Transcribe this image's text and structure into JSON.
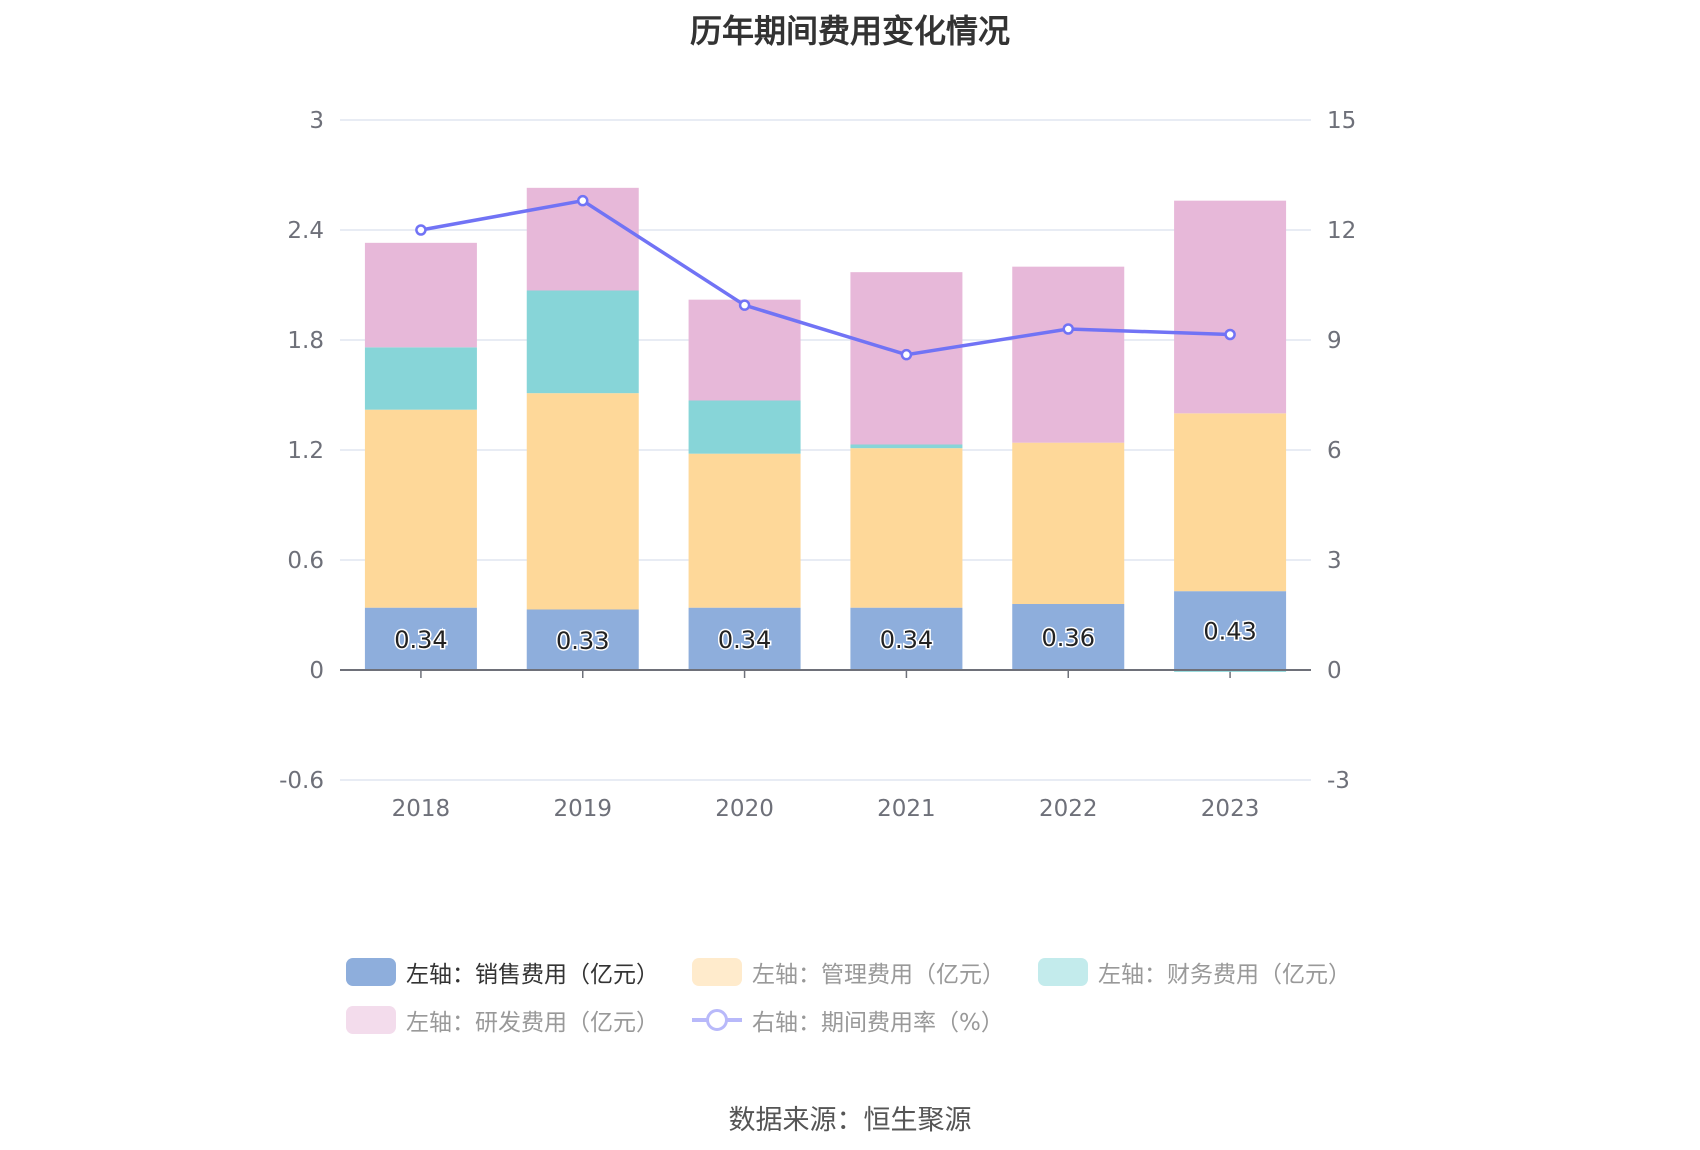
{
  "title": "历年期间费用变化情况",
  "source": "数据来源：恒生聚源",
  "chart_data": {
    "type": "bar",
    "stacked": true,
    "categories": [
      "2018",
      "2019",
      "2020",
      "2021",
      "2022",
      "2023"
    ],
    "left_axis": {
      "ylim": [
        -0.6,
        3
      ],
      "ticks": [
        "-0.6",
        "0",
        "0.6",
        "1.2",
        "1.8",
        "2.4",
        "3"
      ]
    },
    "right_axis": {
      "ylim": [
        -3,
        15
      ],
      "ticks": [
        "-3",
        "0",
        "3",
        "6",
        "9",
        "12",
        "15"
      ]
    },
    "grid": true,
    "legend_placement": "bottom",
    "series": [
      {
        "name": "左轴：销售费用（亿元）",
        "type": "bar",
        "axis": "left",
        "color": "#8eaedc",
        "legend_active": true,
        "values": [
          0.34,
          0.33,
          0.34,
          0.34,
          0.36,
          0.43
        ],
        "labels": [
          "0.34",
          "0.33",
          "0.34",
          "0.34",
          "0.36",
          "0.43"
        ]
      },
      {
        "name": "左轴：管理费用（亿元）",
        "type": "bar",
        "axis": "left",
        "color": "#fed899",
        "legend_active": false,
        "values": [
          1.08,
          1.18,
          0.84,
          0.87,
          0.88,
          0.97
        ]
      },
      {
        "name": "左轴：财务费用（亿元）",
        "type": "bar",
        "axis": "left",
        "color": "#87d5d8",
        "legend_active": false,
        "values": [
          0.34,
          0.56,
          0.29,
          0.02,
          0.0,
          -0.01
        ]
      },
      {
        "name": "左轴：研发费用（亿元）",
        "type": "bar",
        "axis": "left",
        "color": "#e7b8d9",
        "legend_active": false,
        "values": [
          0.57,
          0.56,
          0.55,
          0.94,
          0.96,
          1.16
        ]
      },
      {
        "name": "右轴：期间费用率（%）",
        "type": "line",
        "axis": "right",
        "color": "#7173f5",
        "legend_active": false,
        "values": [
          12.0,
          12.8,
          9.95,
          8.6,
          9.3,
          9.15
        ]
      }
    ]
  }
}
